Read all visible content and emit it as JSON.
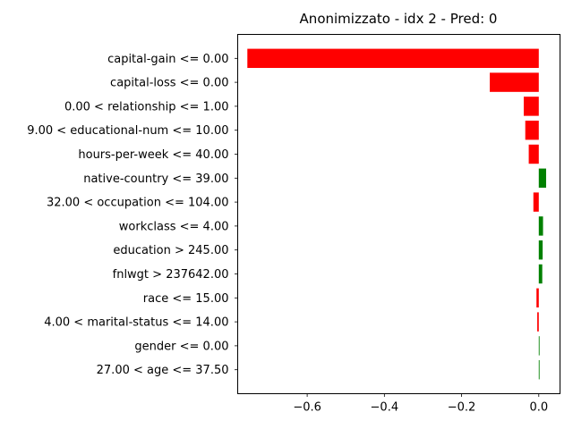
{
  "chart_data": {
    "type": "bar",
    "orientation": "horizontal",
    "title": "Anonimizzato - idx 2 - Pred: 0",
    "xlabel": "",
    "ylabel": "",
    "xlim": [
      -0.78,
      0.055
    ],
    "xticks": [
      -0.6,
      -0.4,
      -0.2,
      0.0
    ],
    "xtick_labels": [
      "−0.6",
      "−0.4",
      "−0.2",
      "0.0"
    ],
    "grid": false,
    "colors": {
      "negative": "#ff0000",
      "positive": "#008000"
    },
    "categories": [
      "capital-gain <= 0.00",
      "capital-loss <= 0.00",
      "0.00 < relationship <= 1.00",
      "9.00 < educational-num <= 10.00",
      "hours-per-week <= 40.00",
      "native-country <= 39.00",
      "32.00 < occupation <= 104.00",
      "workclass <= 4.00",
      "education > 245.00",
      "fnlwgt > 237642.00",
      "race <= 15.00",
      "4.00 < marital-status <= 14.00",
      "gender <= 0.00",
      "27.00 < age <= 37.50"
    ],
    "values": [
      -0.755,
      -0.127,
      -0.039,
      -0.035,
      -0.026,
      0.019,
      -0.014,
      0.011,
      0.01,
      0.009,
      -0.006,
      -0.004,
      0.002,
      0.002
    ]
  }
}
